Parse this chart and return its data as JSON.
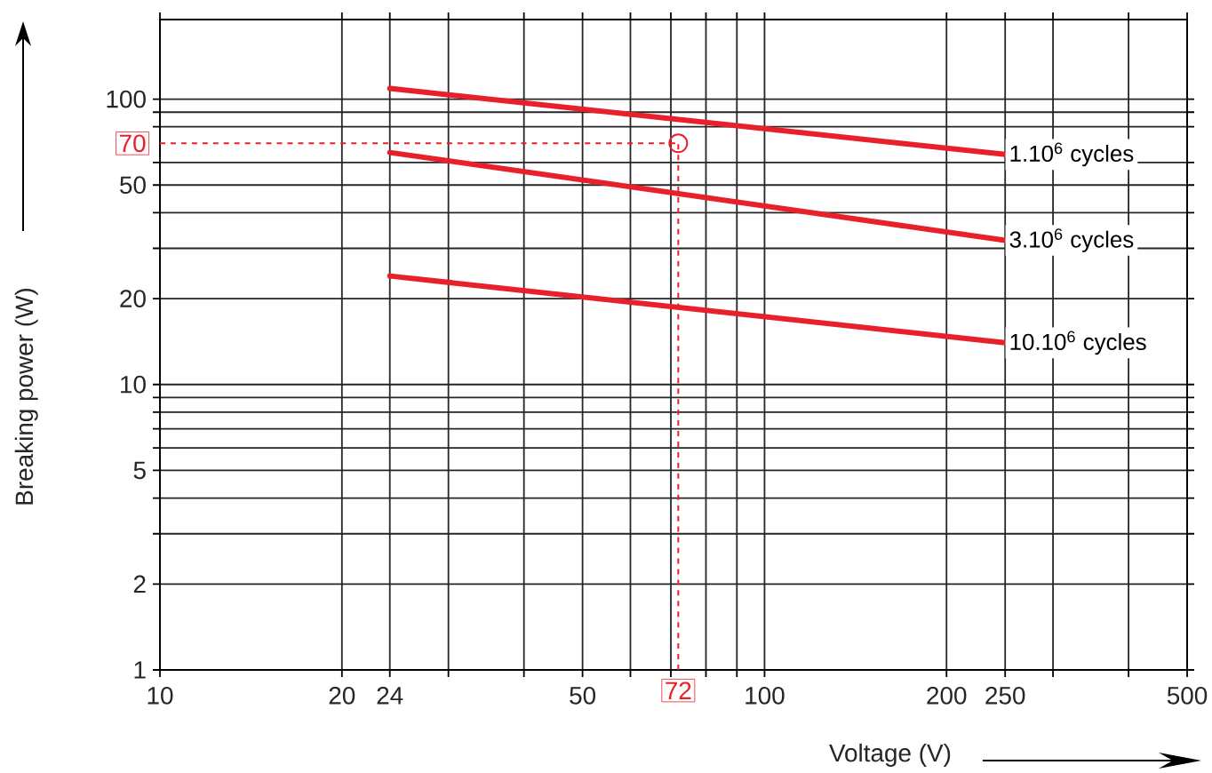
{
  "chart_data": {
    "type": "line",
    "xlabel": "Voltage (V)",
    "ylabel": "Breaking power (W)",
    "log": "xy",
    "grid": true,
    "xlim": [
      10,
      500
    ],
    "ylim": [
      1,
      190
    ],
    "xticks": [
      10,
      20,
      24,
      {
        "value": 30,
        "label": null
      },
      {
        "value": 40,
        "label": null
      },
      50,
      {
        "value": 60,
        "label": null
      },
      {
        "value": 70,
        "label": null
      },
      {
        "value": 80,
        "label": null
      },
      {
        "value": 90,
        "label": null
      },
      100,
      200,
      250,
      {
        "value": 300,
        "label": null
      },
      {
        "value": 400,
        "label": null
      },
      500
    ],
    "yticks": [
      1,
      2,
      {
        "value": 3,
        "label": null
      },
      {
        "value": 4,
        "label": null
      },
      5,
      {
        "value": 6,
        "label": null
      },
      {
        "value": 7,
        "label": null
      },
      {
        "value": 8,
        "label": null
      },
      {
        "value": 9,
        "label": null
      },
      10,
      20,
      {
        "value": 30,
        "label": null
      },
      {
        "value": 40,
        "label": null
      },
      50,
      {
        "value": 60,
        "label": null
      },
      {
        "value": 80,
        "label": null
      },
      {
        "value": 90,
        "label": null
      },
      100
    ],
    "series": [
      {
        "name": "1.10$^{6}$ cycles",
        "color": "#e8202a",
        "x": [
          24,
          250
        ],
        "values": [
          109,
          64
        ]
      },
      {
        "name": "3.10$^{6}$ cycles",
        "color": "#e8202a",
        "x": [
          24,
          250
        ],
        "values": [
          65,
          32
        ]
      },
      {
        "name": "10.10$^{6}$ cycles",
        "color": "#e8202a",
        "x": [
          24,
          250
        ],
        "values": [
          24,
          14
        ]
      },
      {
        "type": "scatter",
        "marker": "circle",
        "color": "#e8202a",
        "x": [
          72
        ],
        "values": [
          70
        ]
      }
    ],
    "ref_lines": [
      {
        "axis": "y",
        "value": 70,
        "label": "70",
        "color": "#e8202a",
        "line_style": "dashed"
      },
      {
        "axis": "x",
        "value": 72,
        "label": "72",
        "color": "#e8202a",
        "line_style": "dashed"
      }
    ]
  }
}
